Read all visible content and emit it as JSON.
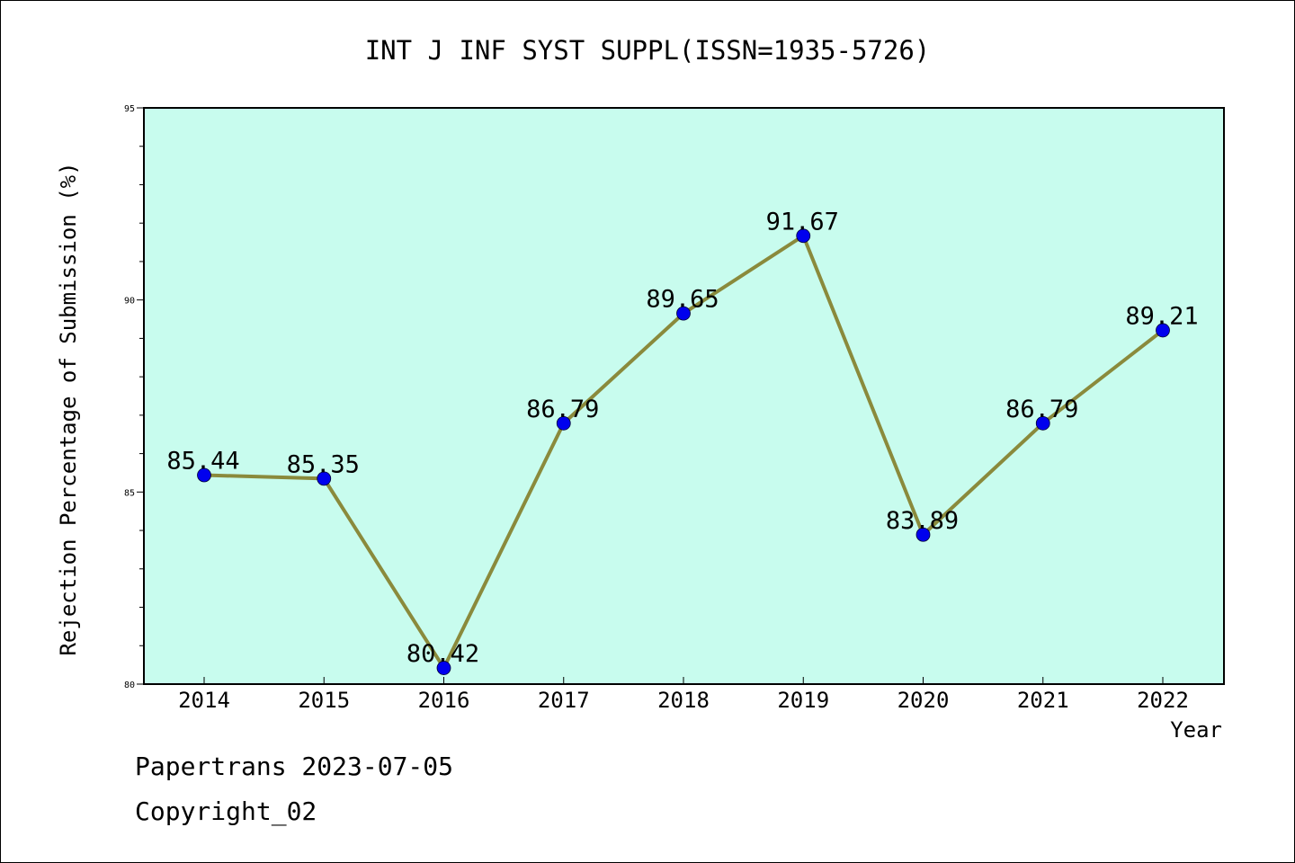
{
  "chart_data": {
    "type": "line",
    "title": "INT J INF SYST SUPPL(ISSN=1935-5726)",
    "xlabel": "Year",
    "ylabel": "Rejection Percentage of Submission (%)",
    "categories": [
      "2014",
      "2015",
      "2016",
      "2017",
      "2018",
      "2019",
      "2020",
      "2021",
      "2022"
    ],
    "values": [
      85.44,
      85.35,
      80.42,
      86.79,
      89.65,
      91.67,
      83.89,
      86.79,
      89.21
    ],
    "data_labels": [
      "85.44",
      "85.35",
      "80.42",
      "86.79",
      "89.65",
      "91.67",
      "83.89",
      "86.79",
      "89.21"
    ],
    "ylim": [
      80,
      95
    ],
    "yticks": [
      "80",
      "85",
      "90",
      "95"
    ],
    "grid": false,
    "colors": {
      "plot_background": "#c8fcee",
      "line": "#8a8a3c",
      "marker": "#0000ee"
    }
  },
  "footer": {
    "line1": "Papertrans 2023-07-05",
    "line2": "Copyright_02"
  }
}
